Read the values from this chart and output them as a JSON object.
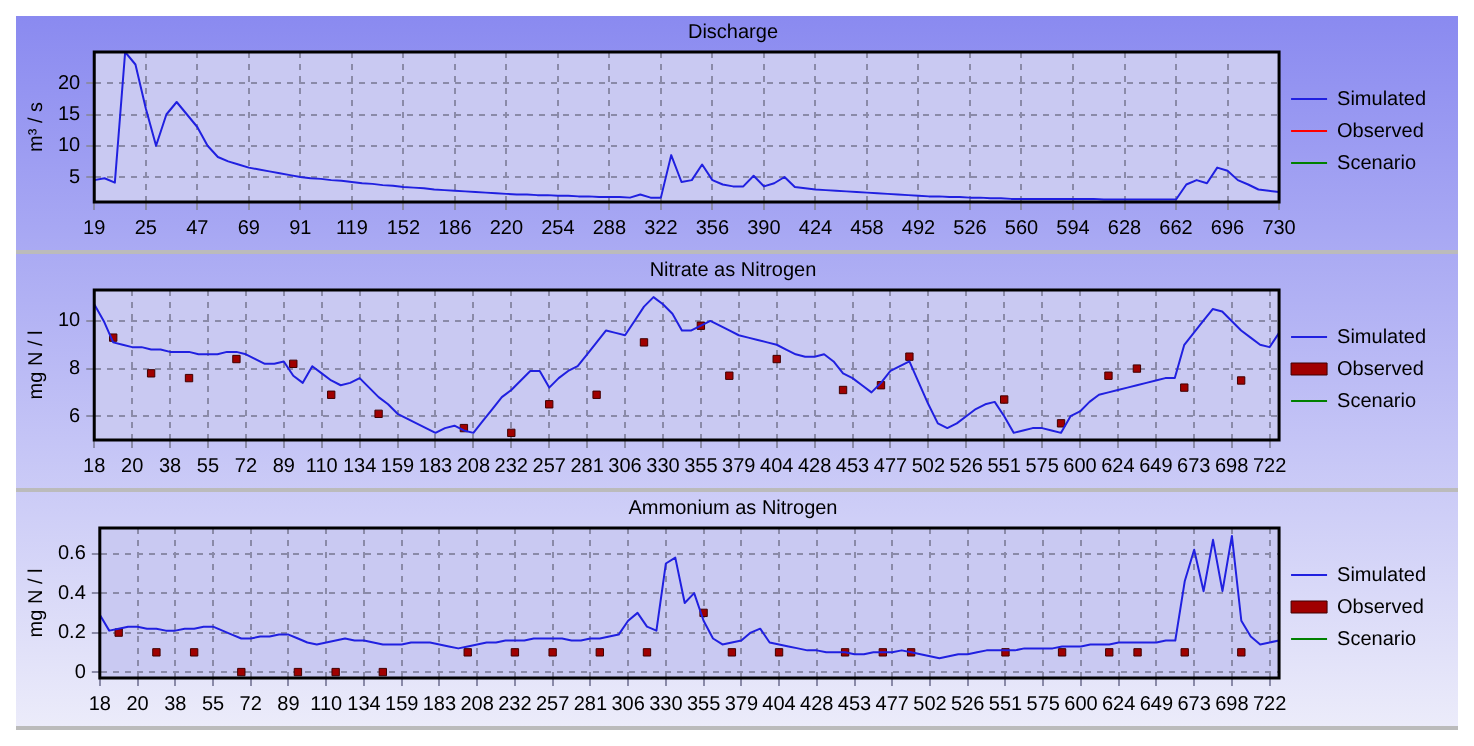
{
  "chart_data": [
    {
      "type": "line",
      "title": "Discharge",
      "ylabel": "m³ / s",
      "ylim": [
        1,
        25
      ],
      "yticks": [
        5,
        10,
        15,
        20
      ],
      "grid": true,
      "legend": "right",
      "categories": [
        "19",
        null,
        null,
        null,
        null,
        "25",
        null,
        null,
        null,
        null,
        "47",
        null,
        null,
        null,
        null,
        "69",
        null,
        null,
        null,
        null,
        "91",
        null,
        null,
        null,
        null,
        "119",
        null,
        null,
        null,
        null,
        "152",
        null,
        null,
        null,
        null,
        "186",
        null,
        null,
        null,
        null,
        "220",
        null,
        null,
        null,
        null,
        "254",
        null,
        null,
        null,
        null,
        "288",
        null,
        null,
        null,
        null,
        "322",
        null,
        null,
        null,
        null,
        "356",
        null,
        null,
        null,
        null,
        "390",
        null,
        null,
        null,
        null,
        "424",
        null,
        null,
        null,
        null,
        "458",
        null,
        null,
        null,
        null,
        "492",
        null,
        null,
        null,
        null,
        "526",
        null,
        null,
        null,
        null,
        "560",
        null,
        null,
        null,
        null,
        "594",
        null,
        null,
        null,
        null,
        "628",
        null,
        null,
        null,
        null,
        "662",
        null,
        null,
        null,
        null,
        "696",
        null,
        null,
        null,
        null,
        "730"
      ],
      "series": [
        {
          "name": "Simulated",
          "color": "#2020e0",
          "marker": "none",
          "values": [
            4.5,
            4.8,
            4.1,
            25,
            23,
            16,
            10,
            15,
            17,
            15,
            13,
            10,
            8.2,
            7.5,
            7,
            6.5,
            6.2,
            5.9,
            5.6,
            5.3,
            5,
            4.8,
            4.7,
            4.5,
            4.4,
            4.2,
            4.0,
            3.9,
            3.7,
            3.6,
            3.4,
            3.3,
            3.2,
            3.0,
            2.9,
            2.8,
            2.7,
            2.6,
            2.5,
            2.4,
            2.3,
            2.2,
            2.2,
            2.1,
            2.1,
            2,
            2,
            1.9,
            1.9,
            1.8,
            1.8,
            1.8,
            1.7,
            2.2,
            1.7,
            1.7,
            8.5,
            4.2,
            4.5,
            7,
            4.5,
            3.8,
            3.5,
            3.5,
            5.2,
            3.5,
            4,
            5,
            3.4,
            3.2,
            3,
            2.9,
            2.8,
            2.7,
            2.6,
            2.5,
            2.4,
            2.3,
            2.2,
            2.1,
            2,
            1.9,
            1.9,
            1.8,
            1.8,
            1.7,
            1.7,
            1.6,
            1.6,
            1.5,
            1.5,
            1.5,
            1.5,
            1.5,
            1.5,
            1.5,
            1.5,
            1.5,
            1.4,
            1.4,
            1.4,
            1.4,
            1.4,
            1.4,
            1.4,
            1.4,
            3.8,
            4.5,
            4,
            6.5,
            6,
            4.5,
            3.8,
            3,
            2.8,
            2.6
          ]
        },
        {
          "name": "Observed",
          "color": "#ff0000",
          "marker": "none",
          "values": [
            null,
            null,
            null,
            null,
            null,
            null,
            null,
            null,
            null,
            null,
            null,
            null,
            null,
            null,
            null,
            null,
            null,
            null,
            null,
            null,
            null,
            null,
            null,
            null,
            null,
            null,
            null,
            null,
            null,
            null,
            null,
            null,
            null,
            null,
            null,
            null,
            null,
            null,
            null,
            null,
            null,
            null,
            null,
            null,
            null,
            null,
            null,
            null,
            null,
            null,
            null,
            null,
            null,
            null,
            null,
            null,
            null,
            null,
            null,
            null,
            null,
            null,
            null,
            null,
            null,
            null,
            null,
            null,
            null,
            null,
            null,
            null,
            null,
            null,
            null,
            null,
            null,
            null,
            null,
            null,
            null,
            null,
            null,
            null,
            null,
            null,
            null,
            null,
            null,
            null,
            null,
            null,
            null,
            null,
            null,
            null,
            null,
            null,
            null,
            null,
            null,
            null,
            null,
            null,
            null,
            null,
            null,
            null,
            null,
            null,
            null,
            null,
            null,
            null,
            null,
            null
          ]
        },
        {
          "name": "Scenario",
          "color": "#008000",
          "marker": "none",
          "values": [
            null,
            null,
            null,
            null,
            null,
            null,
            null,
            null,
            null,
            null,
            null,
            null,
            null,
            null,
            null,
            null,
            null,
            null,
            null,
            null,
            null,
            null,
            null,
            null,
            null,
            null,
            null,
            null,
            null,
            null,
            null,
            null,
            null,
            null,
            null,
            null,
            null,
            null,
            null,
            null,
            null,
            null,
            null,
            null,
            null,
            null,
            null,
            null,
            null,
            null,
            null,
            null,
            null,
            null,
            null,
            null,
            null,
            null,
            null,
            null,
            null,
            null,
            null,
            null,
            null,
            null,
            null,
            null,
            null,
            null,
            null,
            null,
            null,
            null,
            null,
            null,
            null,
            null,
            null,
            null,
            null,
            null,
            null,
            null,
            null,
            null,
            null,
            null,
            null,
            null,
            null,
            null,
            null,
            null,
            null,
            null,
            null,
            null,
            null,
            null,
            null,
            null,
            null,
            null,
            null,
            null,
            null,
            null,
            null,
            null,
            null,
            null,
            null,
            null,
            null,
            null
          ]
        }
      ]
    },
    {
      "type": "line",
      "title": "Nitrate as Nitrogen",
      "ylabel": "mg N / l",
      "ylim": [
        5,
        11.3
      ],
      "yticks": [
        6,
        8,
        10
      ],
      "grid": true,
      "legend": "right",
      "categories": [
        "18",
        null,
        null,
        null,
        "20",
        null,
        null,
        null,
        "38",
        null,
        null,
        null,
        "55",
        null,
        null,
        null,
        "72",
        null,
        null,
        null,
        "89",
        null,
        null,
        null,
        "110",
        null,
        null,
        null,
        "134",
        null,
        null,
        null,
        "159",
        null,
        null,
        null,
        "183",
        null,
        null,
        null,
        "208",
        null,
        null,
        null,
        "232",
        null,
        null,
        null,
        "257",
        null,
        null,
        null,
        "281",
        null,
        null,
        null,
        "306",
        null,
        null,
        null,
        "330",
        null,
        null,
        null,
        "355",
        null,
        null,
        null,
        "379",
        null,
        null,
        null,
        "404",
        null,
        null,
        null,
        "428",
        null,
        null,
        null,
        "453",
        null,
        null,
        null,
        "477",
        null,
        null,
        null,
        "502",
        null,
        null,
        null,
        "526",
        null,
        null,
        null,
        "551",
        null,
        null,
        null,
        "575",
        null,
        null,
        null,
        "600",
        null,
        null,
        null,
        "624",
        null,
        null,
        null,
        "649",
        null,
        null,
        null,
        "673",
        null,
        null,
        null,
        "698",
        null,
        null,
        null,
        "722",
        null
      ],
      "series": [
        {
          "name": "Simulated",
          "color": "#2020e0",
          "marker": "none",
          "values": [
            10.7,
            10.0,
            9.1,
            9.0,
            8.9,
            8.9,
            8.8,
            8.8,
            8.7,
            8.7,
            8.7,
            8.6,
            8.6,
            8.6,
            8.7,
            8.7,
            8.6,
            8.4,
            8.2,
            8.2,
            8.3,
            7.7,
            7.4,
            8.1,
            7.8,
            7.5,
            7.3,
            7.4,
            7.6,
            7.2,
            6.8,
            6.5,
            6.1,
            5.9,
            5.7,
            5.5,
            5.3,
            5.5,
            5.6,
            5.4,
            5.3,
            5.8,
            6.3,
            6.8,
            7.1,
            7.5,
            7.9,
            7.9,
            7.2,
            7.6,
            7.9,
            8.1,
            8.6,
            9.1,
            9.6,
            9.5,
            9.4,
            10,
            10.6,
            11.0,
            10.7,
            10.3,
            9.6,
            9.6,
            9.8,
            10,
            9.8,
            9.6,
            9.4,
            9.3,
            9.2,
            9.1,
            9.0,
            8.8,
            8.6,
            8.5,
            8.5,
            8.6,
            8.3,
            7.8,
            7.6,
            7.3,
            7.0,
            7.4,
            7.9,
            8.1,
            8.3,
            7.4,
            6.5,
            5.7,
            5.5,
            5.7,
            6.0,
            6.3,
            6.5,
            6.6,
            6.0,
            5.3,
            5.4,
            5.5,
            5.5,
            5.4,
            5.3,
            6.0,
            6.2,
            6.6,
            6.9,
            7.0,
            7.1,
            7.2,
            7.3,
            7.4,
            7.5,
            7.6,
            7.6,
            9.0,
            9.5,
            10.0,
            10.5,
            10.4,
            10.0,
            9.6,
            9.3,
            9.0,
            8.9,
            9.5
          ]
        },
        {
          "name": "Observed",
          "color": "#a00000",
          "type": "scatter",
          "marker": "square",
          "values": [
            null,
            null,
            9.3,
            null,
            null,
            null,
            7.8,
            null,
            null,
            null,
            7.6,
            null,
            null,
            null,
            null,
            8.4,
            null,
            null,
            null,
            null,
            null,
            8.2,
            null,
            null,
            null,
            6.9,
            null,
            null,
            null,
            null,
            6.1,
            null,
            null,
            null,
            null,
            null,
            null,
            null,
            null,
            5.5,
            null,
            null,
            null,
            null,
            5.3,
            null,
            null,
            null,
            6.5,
            null,
            null,
            null,
            null,
            6.9,
            null,
            null,
            null,
            null,
            9.1,
            null,
            null,
            null,
            null,
            null,
            9.8,
            null,
            null,
            7.7,
            null,
            null,
            null,
            null,
            8.4,
            null,
            null,
            null,
            null,
            null,
            null,
            7.1,
            null,
            null,
            null,
            7.3,
            null,
            null,
            8.5,
            null,
            null,
            null,
            null,
            null,
            null,
            null,
            null,
            null,
            6.7,
            null,
            null,
            null,
            null,
            null,
            5.7,
            null,
            null,
            null,
            null,
            7.7,
            null,
            null,
            8.0,
            null,
            null,
            null,
            null,
            7.2,
            null,
            null,
            null,
            null,
            null,
            7.5,
            null,
            null,
            null,
            null
          ]
        },
        {
          "name": "Scenario",
          "color": "#008000",
          "marker": "none",
          "values": [
            null,
            null,
            null,
            null,
            null,
            null,
            null,
            null,
            null,
            null,
            null,
            null,
            null,
            null,
            null,
            null,
            null,
            null,
            null,
            null,
            null,
            null,
            null,
            null,
            null,
            null,
            null,
            null,
            null,
            null,
            null,
            null,
            null,
            null,
            null,
            null,
            null,
            null,
            null,
            null,
            null,
            null,
            null,
            null,
            null,
            null,
            null,
            null,
            null,
            null,
            null,
            null,
            null,
            null,
            null,
            null,
            null,
            null,
            null,
            null,
            null,
            null,
            null,
            null,
            null,
            null,
            null,
            null,
            null,
            null,
            null,
            null,
            null,
            null,
            null,
            null,
            null,
            null,
            null,
            null,
            null,
            null,
            null,
            null,
            null,
            null,
            null,
            null,
            null,
            null,
            null,
            null,
            null,
            null,
            null,
            null,
            null,
            null,
            null,
            null,
            null,
            null,
            null,
            null,
            null,
            null,
            null,
            null,
            null,
            null,
            null,
            null,
            null,
            null,
            null,
            null,
            null,
            null,
            null,
            null,
            null,
            null,
            null,
            null,
            null,
            null
          ]
        }
      ]
    },
    {
      "type": "line",
      "title": "Ammonium as Nitrogen",
      "ylabel": "mg N / l",
      "ylim": [
        -0.03,
        0.73
      ],
      "yticks": [
        0,
        0.2,
        0.4,
        0.6
      ],
      "grid": true,
      "legend": "right",
      "categories": [
        "18",
        null,
        null,
        null,
        "20",
        null,
        null,
        null,
        "38",
        null,
        null,
        null,
        "55",
        null,
        null,
        null,
        "72",
        null,
        null,
        null,
        "89",
        null,
        null,
        null,
        "110",
        null,
        null,
        null,
        "134",
        null,
        null,
        null,
        "159",
        null,
        null,
        null,
        "183",
        null,
        null,
        null,
        "208",
        null,
        null,
        null,
        "232",
        null,
        null,
        null,
        "257",
        null,
        null,
        null,
        "281",
        null,
        null,
        null,
        "306",
        null,
        null,
        null,
        "330",
        null,
        null,
        null,
        "355",
        null,
        null,
        null,
        "379",
        null,
        null,
        null,
        "404",
        null,
        null,
        null,
        "428",
        null,
        null,
        null,
        "453",
        null,
        null,
        null,
        "477",
        null,
        null,
        null,
        "502",
        null,
        null,
        null,
        "526",
        null,
        null,
        null,
        "551",
        null,
        null,
        null,
        "575",
        null,
        null,
        null,
        "600",
        null,
        null,
        null,
        "624",
        null,
        null,
        null,
        "649",
        null,
        null,
        null,
        "673",
        null,
        null,
        null,
        "698",
        null,
        null,
        null,
        "722",
        null
      ],
      "series": [
        {
          "name": "Simulated",
          "color": "#2020e0",
          "marker": "none",
          "values": [
            0.29,
            0.21,
            0.22,
            0.23,
            0.23,
            0.22,
            0.22,
            0.21,
            0.21,
            0.22,
            0.22,
            0.23,
            0.23,
            0.21,
            0.19,
            0.17,
            0.17,
            0.18,
            0.18,
            0.19,
            0.19,
            0.17,
            0.15,
            0.14,
            0.15,
            0.16,
            0.17,
            0.16,
            0.16,
            0.15,
            0.14,
            0.14,
            0.14,
            0.15,
            0.15,
            0.15,
            0.14,
            0.13,
            0.12,
            0.13,
            0.14,
            0.15,
            0.15,
            0.16,
            0.16,
            0.16,
            0.17,
            0.17,
            0.17,
            0.17,
            0.16,
            0.16,
            0.17,
            0.17,
            0.18,
            0.19,
            0.26,
            0.3,
            0.23,
            0.21,
            0.55,
            0.58,
            0.35,
            0.4,
            0.26,
            0.17,
            0.14,
            0.15,
            0.16,
            0.2,
            0.22,
            0.15,
            0.14,
            0.13,
            0.12,
            0.11,
            0.11,
            0.1,
            0.1,
            0.1,
            0.09,
            0.09,
            0.1,
            0.1,
            0.1,
            0.11,
            0.1,
            0.09,
            0.08,
            0.07,
            0.08,
            0.09,
            0.09,
            0.1,
            0.11,
            0.11,
            0.11,
            0.11,
            0.12,
            0.12,
            0.12,
            0.12,
            0.13,
            0.13,
            0.13,
            0.14,
            0.14,
            0.14,
            0.15,
            0.15,
            0.15,
            0.15,
            0.15,
            0.16,
            0.16,
            0.46,
            0.62,
            0.41,
            0.67,
            0.41,
            0.69,
            0.26,
            0.18,
            0.14,
            0.15,
            0.16
          ]
        },
        {
          "name": "Observed",
          "color": "#a00000",
          "type": "scatter",
          "marker": "square",
          "values": [
            null,
            null,
            0.2,
            null,
            null,
            null,
            0.1,
            null,
            null,
            null,
            0.1,
            null,
            null,
            null,
            null,
            0,
            null,
            null,
            null,
            null,
            null,
            0,
            null,
            null,
            null,
            0,
            null,
            null,
            null,
            null,
            0,
            null,
            null,
            null,
            null,
            null,
            null,
            null,
            null,
            0.1,
            null,
            null,
            null,
            null,
            0.1,
            null,
            null,
            null,
            0.1,
            null,
            null,
            null,
            null,
            0.1,
            null,
            null,
            null,
            null,
            0.1,
            null,
            null,
            null,
            null,
            null,
            0.3,
            null,
            null,
            0.1,
            null,
            null,
            null,
            null,
            0.1,
            null,
            null,
            null,
            null,
            null,
            null,
            0.1,
            null,
            null,
            null,
            0.1,
            null,
            null,
            0.1,
            null,
            null,
            null,
            null,
            null,
            null,
            null,
            null,
            null,
            0.1,
            null,
            null,
            null,
            null,
            null,
            0.1,
            null,
            null,
            null,
            null,
            0.1,
            null,
            null,
            0.1,
            null,
            null,
            null,
            null,
            0.1,
            null,
            null,
            null,
            null,
            null,
            0.1,
            null,
            null,
            null,
            null
          ]
        },
        {
          "name": "Scenario",
          "color": "#008000",
          "marker": "none",
          "values": [
            null,
            null,
            null,
            null,
            null,
            null,
            null,
            null,
            null,
            null,
            null,
            null,
            null,
            null,
            null,
            null,
            null,
            null,
            null,
            null,
            null,
            null,
            null,
            null,
            null,
            null,
            null,
            null,
            null,
            null,
            null,
            null,
            null,
            null,
            null,
            null,
            null,
            null,
            null,
            null,
            null,
            null,
            null,
            null,
            null,
            null,
            null,
            null,
            null,
            null,
            null,
            null,
            null,
            null,
            null,
            null,
            null,
            null,
            null,
            null,
            null,
            null,
            null,
            null,
            null,
            null,
            null,
            null,
            null,
            null,
            null,
            null,
            null,
            null,
            null,
            null,
            null,
            null,
            null,
            null,
            null,
            null,
            null,
            null,
            null,
            null,
            null,
            null,
            null,
            null,
            null,
            null,
            null,
            null,
            null,
            null,
            null,
            null,
            null,
            null,
            null,
            null,
            null,
            null,
            null,
            null,
            null,
            null,
            null,
            null,
            null,
            null,
            null,
            null,
            null,
            null,
            null,
            null,
            null,
            null,
            null,
            null,
            null,
            null,
            null,
            null
          ]
        }
      ]
    }
  ]
}
